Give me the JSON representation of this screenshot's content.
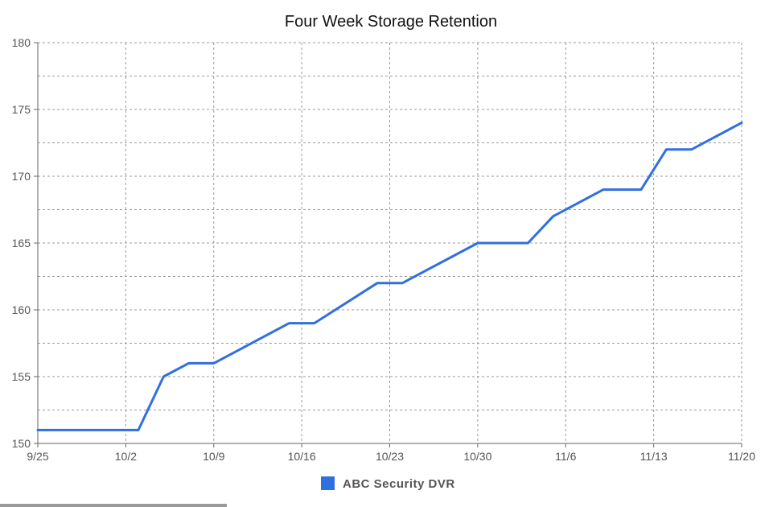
{
  "chart_data": {
    "type": "line",
    "title": "Four Week Storage Retention",
    "xlabel": "",
    "ylabel": "",
    "x_start": "9/25",
    "x_end": "11/20",
    "x_ticks": [
      "9/25",
      "10/2",
      "10/9",
      "10/16",
      "10/23",
      "10/30",
      "11/6",
      "11/13",
      "11/20"
    ],
    "y_ticks": [
      150,
      155,
      160,
      165,
      170,
      175,
      180
    ],
    "ylim": [
      150,
      180
    ],
    "grid": true,
    "legend_position": "bottom",
    "series": [
      {
        "name": "ABC Security DVR",
        "color": "#2f6fe0",
        "points": [
          {
            "x": "9/25",
            "y": 151
          },
          {
            "x": "10/3",
            "y": 151
          },
          {
            "x": "10/5",
            "y": 155
          },
          {
            "x": "10/7",
            "y": 156
          },
          {
            "x": "10/9",
            "y": 156
          },
          {
            "x": "10/15",
            "y": 159
          },
          {
            "x": "10/17",
            "y": 159
          },
          {
            "x": "10/22",
            "y": 162
          },
          {
            "x": "10/24",
            "y": 162
          },
          {
            "x": "10/30",
            "y": 165
          },
          {
            "x": "11/3",
            "y": 165
          },
          {
            "x": "11/5",
            "y": 167
          },
          {
            "x": "11/9",
            "y": 169
          },
          {
            "x": "11/12",
            "y": 169
          },
          {
            "x": "11/14",
            "y": 172
          },
          {
            "x": "11/16",
            "y": 172
          },
          {
            "x": "11/20",
            "y": 174
          }
        ]
      }
    ]
  }
}
